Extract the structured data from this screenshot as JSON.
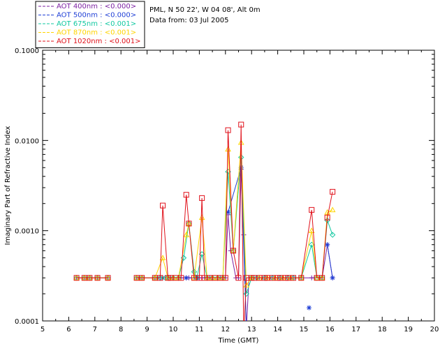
{
  "chart_data": {
    "type": "line",
    "title": "",
    "site_info": [
      "PML, N 50 22', W 04 08', Alt 0m",
      "Data from: 03 Jul 2005"
    ],
    "xlabel": "Time (GMT)",
    "ylabel": "Imaginary Part of Refractive Index",
    "xlim": [
      5,
      20
    ],
    "ylim": [
      0.0001,
      0.1
    ],
    "yscale": "log",
    "xticks": [
      "5",
      "6",
      "7",
      "8",
      "9",
      "10",
      "11",
      "12",
      "13",
      "14",
      "15",
      "16",
      "17",
      "18",
      "19",
      "20"
    ],
    "yticks": [
      "0.0001",
      "0.0010",
      "0.0100",
      "0.1000"
    ],
    "grid": false,
    "legend_position": "top-left-outside",
    "series": [
      {
        "name": "AOT  400nm : <0.000>",
        "color": "#7b1fa2",
        "marker": "plus",
        "points": [
          [
            6.3,
            0.0003
          ],
          [
            6.6,
            0.0003
          ],
          [
            6.8,
            0.0003
          ],
          [
            7.1,
            0.0003
          ],
          [
            7.5,
            0.0003
          ],
          [
            8.6,
            0.0003
          ],
          [
            8.8,
            0.0003
          ],
          [
            9.3,
            0.0003
          ],
          [
            9.5,
            0.0003
          ],
          [
            9.6,
            0.0003
          ],
          [
            9.8,
            0.0003
          ],
          [
            9.9,
            0.0003
          ],
          [
            10.0,
            0.0003
          ],
          [
            10.2,
            0.0003
          ],
          [
            10.3,
            0.0003
          ],
          [
            10.5,
            0.0003
          ],
          [
            10.6,
            0.0003
          ],
          [
            10.8,
            0.0003
          ],
          [
            10.9,
            0.0003
          ],
          [
            11.0,
            0.0003
          ],
          [
            11.1,
            0.0003
          ],
          [
            11.2,
            0.0003
          ],
          [
            11.4,
            0.0003
          ],
          [
            11.5,
            0.0003
          ],
          [
            11.7,
            0.0003
          ],
          [
            11.8,
            0.0003
          ],
          [
            11.9,
            0.0003
          ],
          [
            12.0,
            0.0003
          ],
          [
            12.1,
            0.0015
          ],
          [
            12.2,
            0.0006
          ],
          [
            12.4,
            0.0003
          ],
          [
            12.5,
            0.0003
          ],
          [
            12.6,
            0.0048
          ],
          [
            12.7,
            0.0009
          ],
          [
            12.8,
            8e-05
          ],
          [
            12.9,
            0.0003
          ],
          [
            13.0,
            0.0003
          ],
          [
            13.2,
            0.0003
          ],
          [
            13.3,
            0.0003
          ],
          [
            13.5,
            0.0003
          ],
          [
            13.6,
            0.0003
          ],
          [
            13.8,
            0.0003
          ],
          [
            13.9,
            0.0003
          ],
          [
            14.0,
            0.0003
          ],
          [
            14.2,
            0.0003
          ],
          [
            14.3,
            0.0003
          ],
          [
            14.5,
            0.0003
          ],
          [
            14.6,
            0.0003
          ],
          [
            14.9,
            0.0003
          ],
          [
            15.3,
            0.0003
          ],
          [
            15.4,
            0.0003
          ],
          [
            15.6,
            0.0003
          ],
          [
            15.7,
            0.0003
          ],
          [
            15.9,
            0.0007
          ],
          [
            16.1,
            0.0003
          ]
        ]
      },
      {
        "name": "AOT  500nm : <0.000>",
        "color": "#1f3fd6",
        "marker": "asterisk",
        "points": [
          [
            9.6,
            0.0003
          ],
          [
            10.5,
            0.0003
          ],
          [
            10.9,
            0.0003
          ],
          [
            12.1,
            0.0016
          ],
          [
            12.6,
            0.005
          ],
          [
            12.8,
            9e-05
          ],
          [
            15.2,
            0.00014
          ],
          [
            15.9,
            0.0007
          ],
          [
            16.1,
            0.0003
          ]
        ]
      },
      {
        "name": "AOT  675nm : <0.001>",
        "color": "#10c8a0",
        "marker": "diamond",
        "points": [
          [
            6.3,
            0.0003
          ],
          [
            6.6,
            0.0003
          ],
          [
            6.8,
            0.0003
          ],
          [
            7.1,
            0.0003
          ],
          [
            7.5,
            0.0003
          ],
          [
            8.6,
            0.0003
          ],
          [
            8.8,
            0.0003
          ],
          [
            9.3,
            0.0003
          ],
          [
            9.5,
            0.0003
          ],
          [
            9.7,
            0.0003
          ],
          [
            9.8,
            0.0003
          ],
          [
            10.0,
            0.0003
          ],
          [
            10.2,
            0.0003
          ],
          [
            10.4,
            0.0005
          ],
          [
            10.6,
            0.0012
          ],
          [
            10.8,
            0.00035
          ],
          [
            10.9,
            0.0003
          ],
          [
            11.1,
            0.00055
          ],
          [
            11.3,
            0.0003
          ],
          [
            11.5,
            0.0003
          ],
          [
            11.7,
            0.0003
          ],
          [
            11.9,
            0.0003
          ],
          [
            12.1,
            0.0045
          ],
          [
            12.3,
            0.0006
          ],
          [
            12.6,
            0.0065
          ],
          [
            12.8,
            0.0002
          ],
          [
            13.0,
            0.0003
          ],
          [
            13.2,
            0.0003
          ],
          [
            13.5,
            0.0003
          ],
          [
            13.8,
            0.0003
          ],
          [
            14.1,
            0.0003
          ],
          [
            14.4,
            0.0003
          ],
          [
            14.6,
            0.0003
          ],
          [
            14.9,
            0.0003
          ],
          [
            15.3,
            0.0007
          ],
          [
            15.5,
            0.0003
          ],
          [
            15.7,
            0.0003
          ],
          [
            15.9,
            0.0013
          ],
          [
            16.1,
            0.0009
          ]
        ]
      },
      {
        "name": "AOT  870nm : <0.001>",
        "color": "#ffd400",
        "marker": "triangle",
        "points": [
          [
            6.3,
            0.0003
          ],
          [
            6.6,
            0.0003
          ],
          [
            6.8,
            0.0003
          ],
          [
            7.1,
            0.0003
          ],
          [
            7.5,
            0.0003
          ],
          [
            8.6,
            0.0003
          ],
          [
            8.8,
            0.0003
          ],
          [
            9.3,
            0.0003
          ],
          [
            9.6,
            0.0005
          ],
          [
            9.8,
            0.0003
          ],
          [
            10.0,
            0.0003
          ],
          [
            10.2,
            0.0003
          ],
          [
            10.5,
            0.0009
          ],
          [
            10.6,
            0.0012
          ],
          [
            10.8,
            0.0003
          ],
          [
            11.1,
            0.0014
          ],
          [
            11.3,
            0.0003
          ],
          [
            11.5,
            0.0003
          ],
          [
            11.7,
            0.0003
          ],
          [
            11.9,
            0.0003
          ],
          [
            12.1,
            0.008
          ],
          [
            12.3,
            0.0006
          ],
          [
            12.6,
            0.0095
          ],
          [
            12.8,
            0.00025
          ],
          [
            13.0,
            0.0003
          ],
          [
            13.3,
            0.0003
          ],
          [
            13.6,
            0.0003
          ],
          [
            13.9,
            0.0003
          ],
          [
            14.2,
            0.0003
          ],
          [
            14.5,
            0.0003
          ],
          [
            14.9,
            0.0003
          ],
          [
            15.3,
            0.001
          ],
          [
            15.5,
            0.0003
          ],
          [
            15.7,
            0.0003
          ],
          [
            15.9,
            0.0016
          ],
          [
            16.1,
            0.0017
          ]
        ]
      },
      {
        "name": "AOT 1020nm : <0.001>",
        "color": "#e0101a",
        "marker": "square",
        "points": [
          [
            6.3,
            0.0003
          ],
          [
            6.6,
            0.0003
          ],
          [
            6.8,
            0.0003
          ],
          [
            7.1,
            0.0003
          ],
          [
            7.5,
            0.0003
          ],
          [
            8.6,
            0.0003
          ],
          [
            8.8,
            0.0003
          ],
          [
            9.3,
            0.0003
          ],
          [
            9.5,
            0.0003
          ],
          [
            9.6,
            0.0019
          ],
          [
            9.8,
            0.0003
          ],
          [
            9.9,
            0.0003
          ],
          [
            10.1,
            0.0003
          ],
          [
            10.3,
            0.0003
          ],
          [
            10.5,
            0.0025
          ],
          [
            10.6,
            0.0012
          ],
          [
            10.8,
            0.0003
          ],
          [
            11.0,
            0.0003
          ],
          [
            11.1,
            0.0023
          ],
          [
            11.2,
            0.0003
          ],
          [
            11.4,
            0.0003
          ],
          [
            11.6,
            0.0003
          ],
          [
            11.8,
            0.0003
          ],
          [
            12.0,
            0.0003
          ],
          [
            12.1,
            0.013
          ],
          [
            12.3,
            0.0006
          ],
          [
            12.5,
            0.0003
          ],
          [
            12.6,
            0.015
          ],
          [
            12.7,
            7e-05
          ],
          [
            12.8,
            0.0003
          ],
          [
            13.0,
            0.0003
          ],
          [
            13.1,
            0.0003
          ],
          [
            13.3,
            0.0003
          ],
          [
            13.5,
            0.0003
          ],
          [
            13.6,
            0.0003
          ],
          [
            13.8,
            0.0003
          ],
          [
            14.0,
            0.0003
          ],
          [
            14.1,
            0.0003
          ],
          [
            14.3,
            0.0003
          ],
          [
            14.4,
            0.0003
          ],
          [
            14.6,
            0.0003
          ],
          [
            14.9,
            0.0003
          ],
          [
            15.3,
            0.0017
          ],
          [
            15.5,
            0.0003
          ],
          [
            15.7,
            0.0003
          ],
          [
            15.9,
            0.0014
          ],
          [
            16.1,
            0.0027
          ]
        ]
      }
    ]
  }
}
